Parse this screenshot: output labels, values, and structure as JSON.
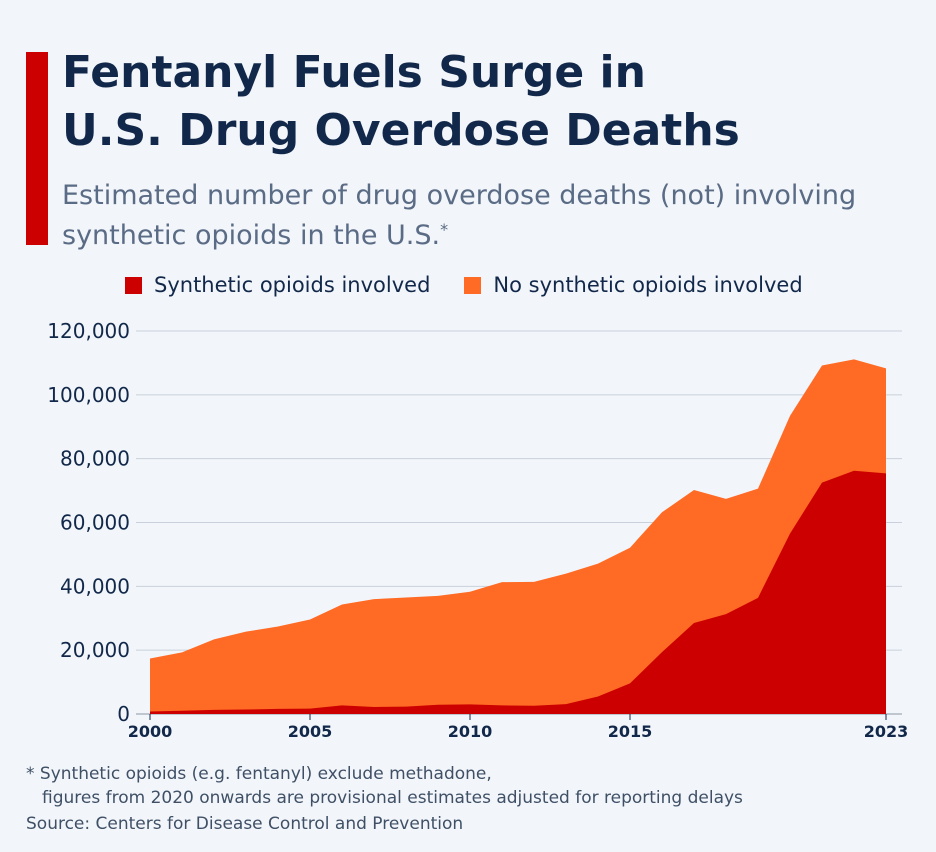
{
  "header": {
    "title_line1": "Fentanyl Fuels Surge in",
    "title_line2": "U.S. Drug Overdose Deaths",
    "subtitle_line1": "Estimated number of drug overdose deaths (not) involving",
    "subtitle_line2": "synthetic opioids in the U.S.",
    "subtitle_mark": "*"
  },
  "colors": {
    "accent": "#cc0000",
    "synthetic": "#cc0000",
    "no_synthetic": "#ff6a24",
    "title": "#12284a",
    "grid": "#c9d0db"
  },
  "footer": {
    "footnote_line1": "* Synthetic opioids (e.g. fentanyl) exclude methadone,",
    "footnote_line2": "figures from 2020 onwards are provisional estimates adjusted for reporting delays",
    "source": "Source: Centers for Disease Control and Prevention"
  },
  "chart_data": {
    "type": "area",
    "stacked": true,
    "title": "Fentanyl Fuels Surge in U.S. Drug Overdose Deaths",
    "x": [
      2000,
      2001,
      2002,
      2003,
      2004,
      2005,
      2006,
      2007,
      2008,
      2009,
      2010,
      2011,
      2012,
      2013,
      2014,
      2015,
      2016,
      2017,
      2018,
      2019,
      2020,
      2021,
      2022,
      2023
    ],
    "series": [
      {
        "name": "Synthetic opioids involved",
        "color": "#cc0000",
        "values": [
          800,
          1000,
          1300,
          1400,
          1600,
          1700,
          2700,
          2200,
          2300,
          2900,
          3000,
          2700,
          2600,
          3100,
          5500,
          9600,
          19400,
          28500,
          31300,
          36400,
          56500,
          72500,
          76200,
          75400
        ]
      },
      {
        "name": "No synthetic opioids involved",
        "color": "#ff6a24",
        "values": [
          16600,
          18300,
          22100,
          24400,
          25800,
          27900,
          31600,
          33800,
          34200,
          34100,
          35300,
          38600,
          38800,
          40900,
          41600,
          42500,
          43800,
          41700,
          36100,
          34200,
          36900,
          36700,
          34900,
          32900
        ]
      }
    ],
    "x_tick_labels": [
      "2000",
      "2005",
      "2010",
      "2015",
      "2023"
    ],
    "x_tick_values": [
      2000,
      2005,
      2010,
      2015,
      2023
    ],
    "y_ticks": [
      0,
      20000,
      40000,
      60000,
      80000,
      100000,
      120000
    ],
    "y_tick_labels": [
      "0",
      "20,000",
      "40,000",
      "60,000",
      "80,000",
      "100,000",
      "120,000"
    ],
    "ylim": [
      0,
      120000
    ],
    "xlim": [
      2000,
      2023
    ],
    "legend": "top",
    "grid": true,
    "xlabel": "",
    "ylabel": ""
  }
}
